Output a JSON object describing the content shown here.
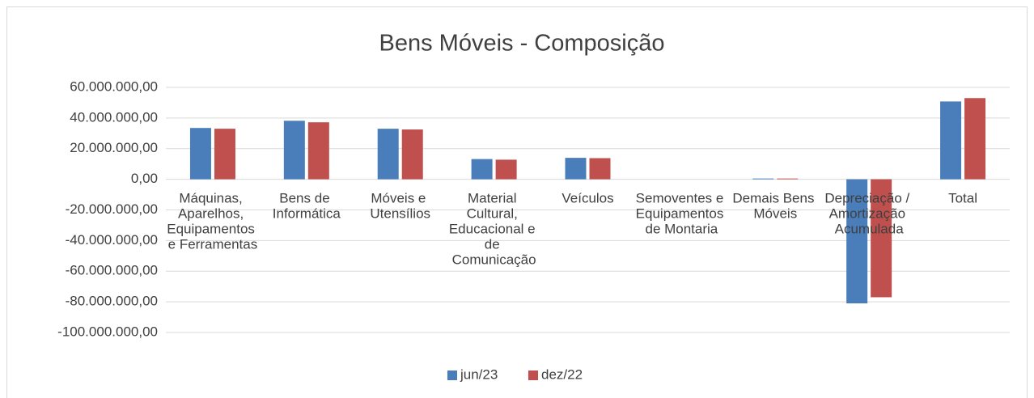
{
  "chart_data": {
    "type": "bar",
    "title": "Bens Móveis - Composição",
    "categories": [
      "Máquinas, Aparelhos, Equipamentos e Ferramentas",
      "Bens de Informática",
      "Móveis e Utensílios",
      "Material Cultural, Educacional e de Comunicação",
      "Veículos",
      "Semoventes e Equipamentos de Montaria",
      "Demais Bens Móveis",
      "Depreciação / Amortização Acumulada",
      "Total"
    ],
    "series": [
      {
        "name": "jun/23",
        "color": "#4a7ebb",
        "values": [
          33500000,
          38200000,
          33000000,
          13200000,
          14000000,
          0,
          500000,
          -81000000,
          50800000
        ]
      },
      {
        "name": "dez/22",
        "color": "#c0504d",
        "values": [
          33000000,
          37200000,
          32500000,
          12800000,
          13800000,
          0,
          500000,
          -77000000,
          53000000
        ]
      }
    ],
    "ylim": [
      -100000000,
      60000000
    ],
    "yticks": [
      {
        "value": -100000000,
        "label": "-100.000.000,00"
      },
      {
        "value": -80000000,
        "label": "-80.000.000,00"
      },
      {
        "value": -60000000,
        "label": "-60.000.000,00"
      },
      {
        "value": -40000000,
        "label": "-40.000.000,00"
      },
      {
        "value": -20000000,
        "label": "-20.000.000,00"
      },
      {
        "value": 0,
        "label": "0,00"
      },
      {
        "value": 20000000,
        "label": "20.000.000,00"
      },
      {
        "value": 40000000,
        "label": "40.000.000,00"
      },
      {
        "value": 60000000,
        "label": "60.000.000,00"
      }
    ],
    "grid": true,
    "legend": "bottom"
  }
}
